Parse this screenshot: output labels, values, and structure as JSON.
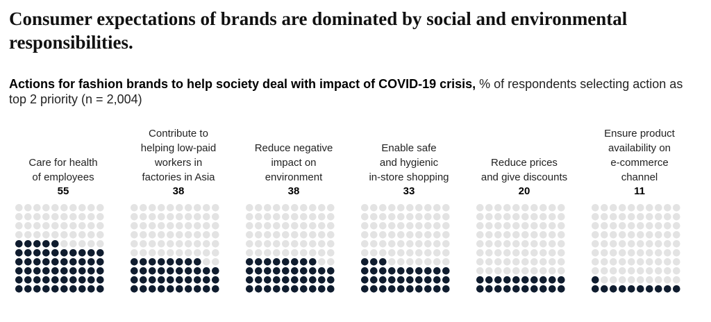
{
  "title": "Consumer expectations of brands are dominated by social and environmental responsibilities.",
  "subtitle": {
    "bold": "Actions for fashion brands to help society deal with impact of COVID-19 crisis,",
    "rest": " % of respondents selecting action as top 2 priority (n = 2,004)"
  },
  "colors": {
    "filled": "#0f1c2e",
    "empty": "#e3e3e3"
  },
  "chart_data": {
    "type": "waffle",
    "unit": "% of respondents",
    "categories": [
      "Care for health of employees",
      "Contribute to helping low-paid workers in factories in Asia",
      "Reduce negative impact on environment",
      "Enable safe and hygienic in-store shopping",
      "Reduce prices and give discounts",
      "Ensure product availability on e-commerce channel"
    ],
    "values": [
      55,
      38,
      38,
      33,
      20,
      11
    ],
    "labels": [
      "Care for health\nof employees",
      "Contribute to\nhelping low-paid\nworkers in\nfactories in Asia",
      "Reduce negative\nimpact on\nenvironment",
      "Enable safe\nand hygienic\nin-store shopping",
      "Reduce prices\nand give discounts",
      "Ensure product\navailability on\ne-commerce\nchannel"
    ],
    "value_labels": [
      "55",
      "38",
      "38",
      "33",
      "20",
      "11"
    ],
    "grid": {
      "rows": 10,
      "cols": 10
    }
  }
}
